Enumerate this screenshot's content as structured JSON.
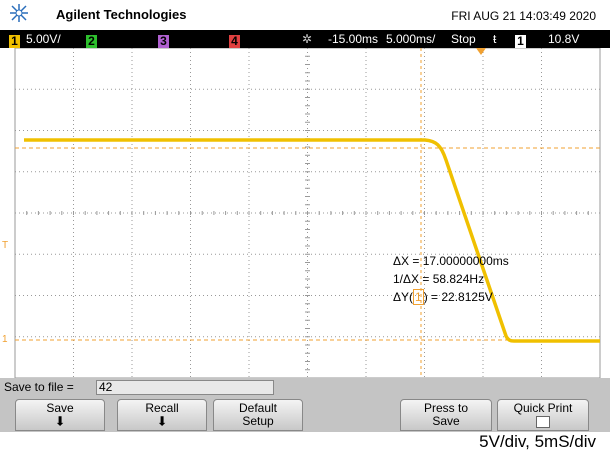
{
  "header": {
    "brand": "Agilent Technologies",
    "datetime": "FRI AUG 21 14:03:49 2020"
  },
  "status": {
    "channels": [
      "1",
      "2",
      "3",
      "4"
    ],
    "ch1_scale": "5.00V/",
    "delay": "-15.00ms",
    "timebase": "5.000ms/",
    "run_state": "Stop",
    "trigger_channel": "1",
    "trigger_level": "10.8V"
  },
  "markers": {
    "trigger": "T",
    "ground": "1"
  },
  "measurements": {
    "dx": "ΔX = 17.00000000ms",
    "inv_dx": "1/ΔX = 58.824Hz",
    "dy_prefix": "ΔY(",
    "dy_channel": "1",
    "dy_suffix": ") = 22.8125V"
  },
  "save_bar": {
    "label": "Save to file =",
    "value": "42"
  },
  "softkeys": [
    {
      "lines": [
        "Save"
      ]
    },
    {
      "lines": [
        "Recall"
      ]
    },
    {
      "lines": [
        "Default",
        "Setup"
      ]
    },
    {
      "lines": [
        "Press to",
        "Save"
      ]
    },
    {
      "lines": [
        "Quick Print"
      ]
    }
  ],
  "caption": "5V/div, 5mS/div"
}
